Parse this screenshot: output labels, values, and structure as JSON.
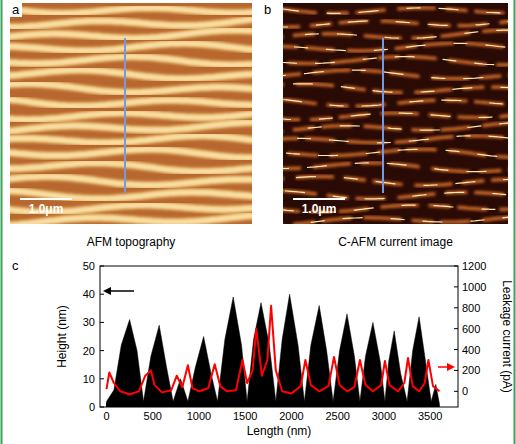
{
  "panels": [
    {
      "label": "a",
      "caption": "AFM topography",
      "scale_bar": "1.0μm"
    },
    {
      "label": "b",
      "caption": "C-AFM current image",
      "scale_bar": "1.0μm"
    }
  ],
  "chart_data": {
    "label": "c",
    "type": "line",
    "x_label": "Length (nm)",
    "y_label": "Height (nm)",
    "y2_label": "Leakage current (pA)",
    "xlim": [
      -70,
      3800
    ],
    "xticks": [
      0,
      500,
      1000,
      1500,
      2000,
      2500,
      3000,
      3500
    ],
    "ylim": [
      0,
      50
    ],
    "yticks": [
      0,
      10,
      20,
      30,
      40,
      50
    ],
    "y2lim": [
      -150,
      1200
    ],
    "y2ticks": [
      0,
      200,
      400,
      600,
      800,
      1000,
      1200
    ],
    "series": [
      {
        "type": "area",
        "color": "#000000",
        "x": [
          0,
          80,
          160,
          250,
          330,
          400,
          480,
          570,
          650,
          720,
          800,
          880,
          960,
          1050,
          1130,
          1200,
          1280,
          1370,
          1460,
          1520,
          1590,
          1670,
          1760,
          1830,
          1900,
          1980,
          2070,
          2140,
          2210,
          2300,
          2380,
          2450,
          2520,
          2600,
          2680,
          2740,
          2800,
          2880,
          2960,
          3010,
          3050,
          3110,
          3180,
          3250,
          3310,
          3380,
          3450,
          3510,
          3560,
          3600
        ],
        "values": [
          2,
          6,
          22,
          31,
          20,
          2,
          18,
          29,
          14,
          2,
          10,
          2,
          14,
          25,
          12,
          2,
          24,
          39,
          22,
          2,
          24,
          37,
          22,
          2,
          24,
          40,
          22,
          2,
          22,
          36,
          20,
          2,
          20,
          33,
          18,
          2,
          18,
          30,
          16,
          2,
          16,
          27,
          12,
          2,
          20,
          32,
          16,
          2,
          8,
          1
        ]
      },
      {
        "type": "line",
        "color": "#ff0000",
        "axis": "y2",
        "x": [
          0,
          30,
          80,
          150,
          250,
          350,
          420,
          480,
          520,
          600,
          700,
          760,
          820,
          880,
          930,
          1000,
          1100,
          1170,
          1230,
          1300,
          1400,
          1470,
          1520,
          1580,
          1620,
          1680,
          1740,
          1780,
          1830,
          1900,
          2000,
          2100,
          2150,
          2210,
          2300,
          2400,
          2460,
          2520,
          2600,
          2680,
          2740,
          2800,
          2880,
          2970,
          3010,
          3060,
          3150,
          3220,
          3260,
          3310,
          3380,
          3440,
          3480,
          3530,
          3600
        ],
        "values": [
          20,
          180,
          80,
          0,
          -30,
          0,
          150,
          200,
          60,
          -10,
          10,
          150,
          40,
          250,
          30,
          0,
          30,
          260,
          50,
          0,
          10,
          300,
          80,
          200,
          600,
          150,
          300,
          820,
          200,
          0,
          -20,
          50,
          300,
          60,
          0,
          50,
          330,
          60,
          0,
          40,
          300,
          60,
          0,
          60,
          290,
          60,
          0,
          80,
          320,
          50,
          0,
          80,
          300,
          50,
          0
        ]
      }
    ]
  }
}
